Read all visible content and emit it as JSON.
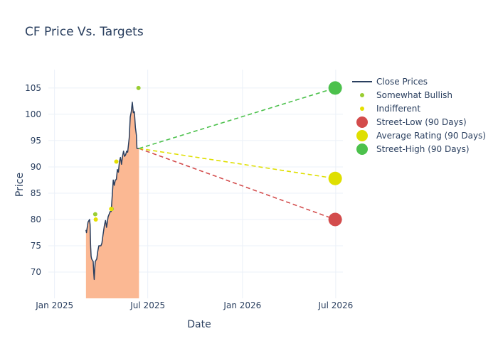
{
  "chart_data": {
    "type": "line",
    "title": "CF Price Vs. Targets",
    "xlabel": "Date",
    "ylabel": "Price",
    "xlim": [
      "2024-12-20",
      "2026-07-15"
    ],
    "ylim": [
      65,
      108.5
    ],
    "x_ticks": [
      {
        "value": "2025-01-01",
        "label": "Jan 2025"
      },
      {
        "value": "2025-07-01",
        "label": "Jul 2025"
      },
      {
        "value": "2026-01-01",
        "label": "Jan 2026"
      },
      {
        "value": "2026-07-01",
        "label": "Jul 2026"
      }
    ],
    "y_ticks": [
      70,
      75,
      80,
      85,
      90,
      95,
      100,
      105
    ],
    "grid": true,
    "legend_position": "right",
    "legend": [
      "Close Prices",
      "Somewhat Bullish",
      "Indifferent",
      "Street-Low (90 Days)",
      "Average Rating (90 Days)",
      "Street-High (90 Days)"
    ],
    "series": [
      {
        "name": "Close Prices",
        "kind": "line-area",
        "color": "#2a3f5f",
        "fill_color": "#fbb893",
        "points": [
          [
            "2025-03-03",
            78
          ],
          [
            "2025-03-04",
            77.5
          ],
          [
            "2025-03-05",
            78.2
          ],
          [
            "2025-03-06",
            78.8
          ],
          [
            "2025-03-07",
            79.5
          ],
          [
            "2025-03-10",
            80
          ],
          [
            "2025-03-11",
            79
          ],
          [
            "2025-03-12",
            75
          ],
          [
            "2025-03-13",
            73
          ],
          [
            "2025-03-14",
            72.5
          ],
          [
            "2025-03-17",
            72
          ],
          [
            "2025-03-18",
            70
          ],
          [
            "2025-03-19",
            68.6
          ],
          [
            "2025-03-20",
            70.5
          ],
          [
            "2025-03-21",
            72
          ],
          [
            "2025-03-24",
            72.5
          ],
          [
            "2025-03-26",
            74
          ],
          [
            "2025-03-28",
            75
          ],
          [
            "2025-04-01",
            75
          ],
          [
            "2025-04-03",
            75.5
          ],
          [
            "2025-04-05",
            77
          ],
          [
            "2025-04-08",
            79
          ],
          [
            "2025-04-10",
            79.8
          ],
          [
            "2025-04-12",
            78.5
          ],
          [
            "2025-04-15",
            80.5
          ],
          [
            "2025-04-17",
            81
          ],
          [
            "2025-04-19",
            81.5
          ],
          [
            "2025-04-21",
            81.5
          ],
          [
            "2025-04-24",
            86
          ],
          [
            "2025-04-25",
            87.5
          ],
          [
            "2025-04-27",
            86.5
          ],
          [
            "2025-04-29",
            87.5
          ],
          [
            "2025-05-01",
            87.6
          ],
          [
            "2025-05-03",
            89.5
          ],
          [
            "2025-05-05",
            89
          ],
          [
            "2025-05-07",
            91
          ],
          [
            "2025-05-09",
            91.8
          ],
          [
            "2025-05-11",
            90.5
          ],
          [
            "2025-05-13",
            92
          ],
          [
            "2025-05-15",
            93
          ],
          [
            "2025-05-17",
            92
          ],
          [
            "2025-05-19",
            92.3
          ],
          [
            "2025-05-21",
            93
          ],
          [
            "2025-05-23",
            92.8
          ],
          [
            "2025-05-26",
            95.5
          ],
          [
            "2025-05-28",
            99.5
          ],
          [
            "2025-05-30",
            100.5
          ],
          [
            "2025-06-01",
            102.3
          ],
          [
            "2025-06-03",
            100.3
          ],
          [
            "2025-06-05",
            100.5
          ],
          [
            "2025-06-07",
            97.5
          ],
          [
            "2025-06-09",
            96
          ],
          [
            "2025-06-10",
            93.5
          ],
          [
            "2025-06-14",
            93.5
          ]
        ]
      },
      {
        "name": "Somewhat Bullish",
        "kind": "scatter",
        "color": "#9acd32",
        "points": [
          [
            "2025-03-21",
            81
          ],
          [
            "2025-04-22",
            82
          ],
          [
            "2025-06-13",
            105
          ]
        ]
      },
      {
        "name": "Indifferent",
        "kind": "scatter",
        "color": "#e5e000",
        "points": [
          [
            "2025-03-22",
            80
          ],
          [
            "2025-04-21",
            82
          ],
          [
            "2025-05-01",
            91
          ]
        ]
      },
      {
        "name": "Street-Low (90 Days)",
        "kind": "target",
        "color": "#d34c4c",
        "from": [
          "2025-06-14",
          93.5
        ],
        "to": [
          "2026-06-30",
          80
        ]
      },
      {
        "name": "Average Rating (90 Days)",
        "kind": "target",
        "color": "#dfdf00",
        "from": [
          "2025-06-14",
          93.5
        ],
        "to": [
          "2026-06-30",
          87.8
        ]
      },
      {
        "name": "Street-High (90 Days)",
        "kind": "target",
        "color": "#4cc14c",
        "from": [
          "2025-06-14",
          93.5
        ],
        "to": [
          "2026-06-30",
          105
        ]
      }
    ]
  }
}
